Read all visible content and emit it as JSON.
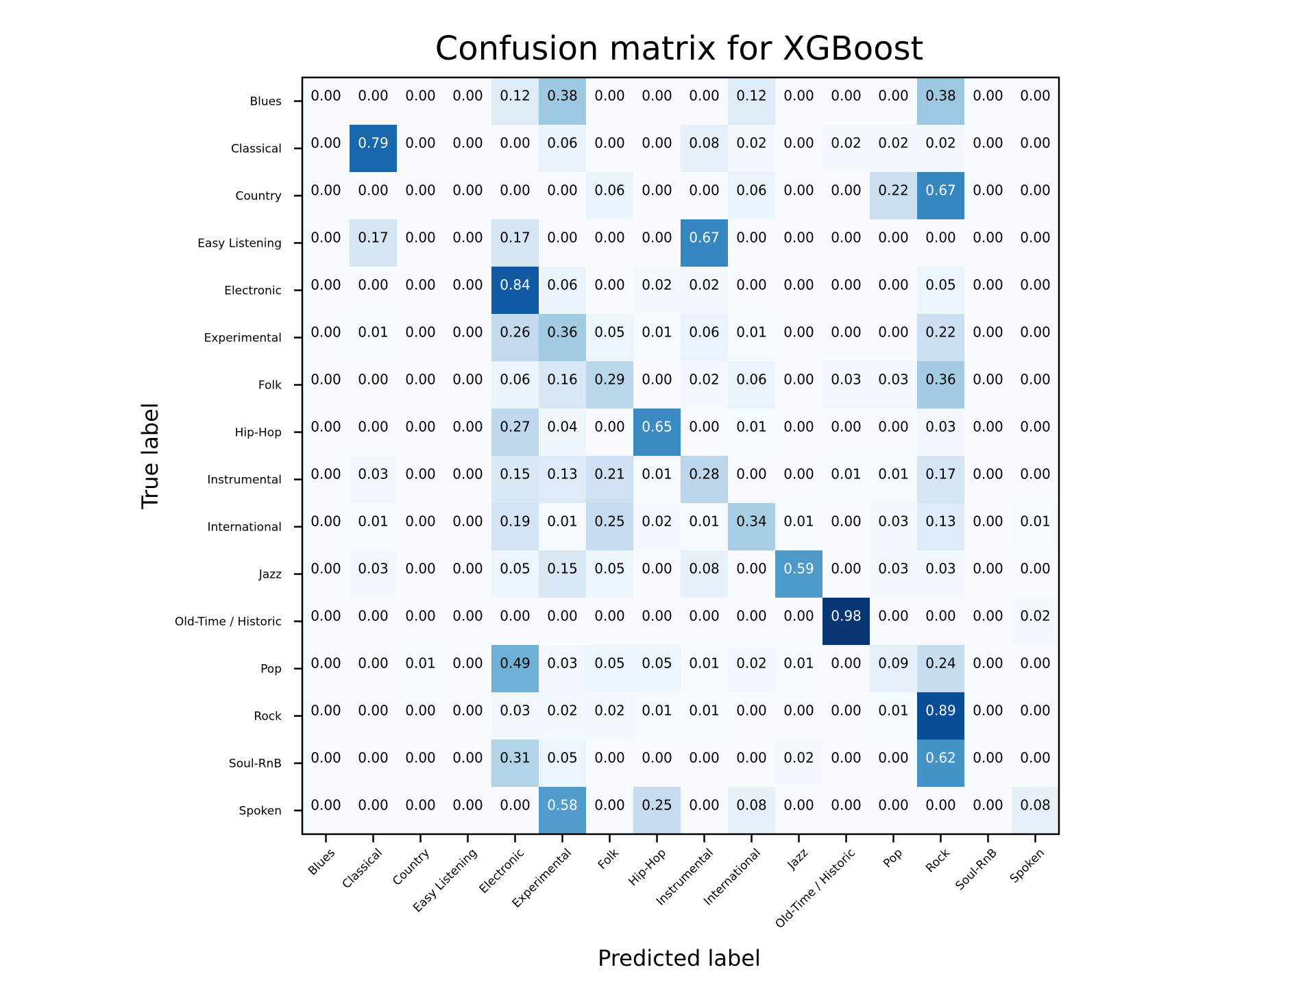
{
  "chart_data": {
    "type": "heatmap",
    "title": "Confusion matrix for XGBoost",
    "xlabel": "Predicted label",
    "ylabel": "True label",
    "labels": [
      "Blues",
      "Classical",
      "Country",
      "Easy Listening",
      "Electronic",
      "Experimental",
      "Folk",
      "Hip-Hop",
      "Instrumental",
      "International",
      "Jazz",
      "Old-Time / Historic",
      "Pop",
      "Rock",
      "Soul-RnB",
      "Spoken"
    ],
    "colormap": "Blues",
    "value_range": [
      0,
      1
    ],
    "grid": false,
    "values": [
      [
        0.0,
        0.0,
        0.0,
        0.0,
        0.12,
        0.38,
        0.0,
        0.0,
        0.0,
        0.12,
        0.0,
        0.0,
        0.0,
        0.38,
        0.0,
        0.0
      ],
      [
        0.0,
        0.79,
        0.0,
        0.0,
        0.0,
        0.06,
        0.0,
        0.0,
        0.08,
        0.02,
        0.0,
        0.02,
        0.02,
        0.02,
        0.0,
        0.0
      ],
      [
        0.0,
        0.0,
        0.0,
        0.0,
        0.0,
        0.0,
        0.06,
        0.0,
        0.0,
        0.06,
        0.0,
        0.0,
        0.22,
        0.67,
        0.0,
        0.0
      ],
      [
        0.0,
        0.17,
        0.0,
        0.0,
        0.17,
        0.0,
        0.0,
        0.0,
        0.67,
        0.0,
        0.0,
        0.0,
        0.0,
        0.0,
        0.0,
        0.0
      ],
      [
        0.0,
        0.0,
        0.0,
        0.0,
        0.84,
        0.06,
        0.0,
        0.02,
        0.02,
        0.0,
        0.0,
        0.0,
        0.0,
        0.05,
        0.0,
        0.0
      ],
      [
        0.0,
        0.01,
        0.0,
        0.0,
        0.26,
        0.36,
        0.05,
        0.01,
        0.06,
        0.01,
        0.0,
        0.0,
        0.0,
        0.22,
        0.0,
        0.0
      ],
      [
        0.0,
        0.0,
        0.0,
        0.0,
        0.06,
        0.16,
        0.29,
        0.0,
        0.02,
        0.06,
        0.0,
        0.03,
        0.03,
        0.36,
        0.0,
        0.0
      ],
      [
        0.0,
        0.0,
        0.0,
        0.0,
        0.27,
        0.04,
        0.0,
        0.65,
        0.0,
        0.01,
        0.0,
        0.0,
        0.0,
        0.03,
        0.0,
        0.0
      ],
      [
        0.0,
        0.03,
        0.0,
        0.0,
        0.15,
        0.13,
        0.21,
        0.01,
        0.28,
        0.0,
        0.0,
        0.01,
        0.01,
        0.17,
        0.0,
        0.0
      ],
      [
        0.0,
        0.01,
        0.0,
        0.0,
        0.19,
        0.01,
        0.25,
        0.02,
        0.01,
        0.34,
        0.01,
        0.0,
        0.03,
        0.13,
        0.0,
        0.01
      ],
      [
        0.0,
        0.03,
        0.0,
        0.0,
        0.05,
        0.15,
        0.05,
        0.0,
        0.08,
        0.0,
        0.59,
        0.0,
        0.03,
        0.03,
        0.0,
        0.0
      ],
      [
        0.0,
        0.0,
        0.0,
        0.0,
        0.0,
        0.0,
        0.0,
        0.0,
        0.0,
        0.0,
        0.0,
        0.98,
        0.0,
        0.0,
        0.0,
        0.02
      ],
      [
        0.0,
        0.0,
        0.01,
        0.0,
        0.49,
        0.03,
        0.05,
        0.05,
        0.01,
        0.02,
        0.01,
        0.0,
        0.09,
        0.24,
        0.0,
        0.0
      ],
      [
        0.0,
        0.0,
        0.0,
        0.0,
        0.03,
        0.02,
        0.02,
        0.01,
        0.01,
        0.0,
        0.0,
        0.0,
        0.01,
        0.89,
        0.0,
        0.0
      ],
      [
        0.0,
        0.0,
        0.0,
        0.0,
        0.31,
        0.05,
        0.0,
        0.0,
        0.0,
        0.0,
        0.02,
        0.0,
        0.0,
        0.62,
        0.0,
        0.0
      ],
      [
        0.0,
        0.0,
        0.0,
        0.0,
        0.0,
        0.58,
        0.0,
        0.25,
        0.0,
        0.08,
        0.0,
        0.0,
        0.0,
        0.0,
        0.0,
        0.08
      ]
    ]
  }
}
